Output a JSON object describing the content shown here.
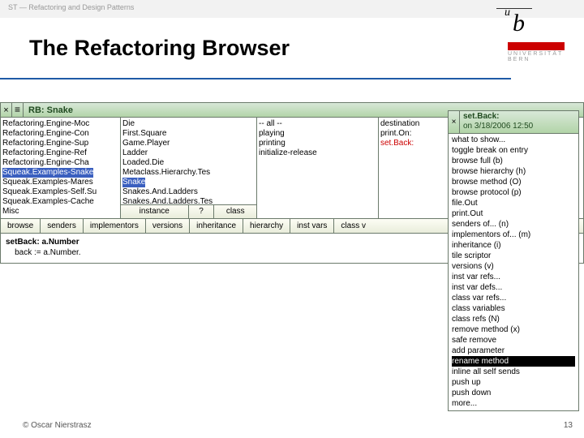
{
  "colors": {
    "accent": "#1f5aa6",
    "green_light": "#d8e8d8",
    "green_dark": "#b2d4a8",
    "border": "#6b7a6b",
    "sel_blue": "#3a5fbf",
    "red": "#cc0000"
  },
  "page": {
    "breadcrumb": "ST — Refactoring and Design Patterns",
    "title": "The Refactoring Browser",
    "footer": "© Oscar Nierstrasz",
    "number": "13",
    "uni_wordmark_line1": "UNIVERSITÄT",
    "uni_wordmark_line2": "BERN"
  },
  "rb": {
    "titlebar": {
      "close": "×",
      "menu": "≡",
      "title": "RB: Snake"
    },
    "panes": {
      "packages": {
        "items": [
          "Refactoring.Engine-Moc",
          "Refactoring.Engine-Con",
          "Refactoring.Engine-Sup",
          "Refactoring.Engine-Ref",
          "Refactoring.Engine-Cha",
          "Squeak.Examples-Snake",
          "Squeak.Examples-Mares",
          "Squeak.Examples-Self.Su",
          "Squeak.Examples-Cache",
          "Misc"
        ],
        "selected_index": 5
      },
      "classes": {
        "items": [
          "Die",
          "First.Square",
          "Game.Player",
          "Ladder",
          "Loaded.Die",
          "Metaclass.Hierarchy.Tes",
          "Snake",
          "Snakes.And.Ladders",
          "Snakes.And.Ladders.Tes"
        ],
        "selected_index": 6,
        "buttons": {
          "instance": "instance",
          "q": "?",
          "klass": "class"
        }
      },
      "protocols": {
        "items": [
          "-- all --",
          "playing",
          "printing",
          "initialize-release"
        ]
      },
      "methods": {
        "items": [
          "destination",
          "print.On:",
          "set.Back:"
        ],
        "red_index": 2
      }
    },
    "buttonrow": [
      "browse",
      "senders",
      "implementors",
      "versions",
      "inheritance",
      "hierarchy",
      "inst vars",
      "class v"
    ],
    "code": {
      "sig_sel": "setBack:",
      "sig_arg": "a.Number",
      "body_var": "back",
      "body_assign": ":= a.Number."
    }
  },
  "popup": {
    "close": "×",
    "title_line1": "set.Back:",
    "title_line2": "on 3/18/2006 12:50",
    "items": [
      "what to show...",
      "toggle break on entry",
      "browse full (b)",
      "browse hierarchy (h)",
      "browse method (O)",
      "browse protocol (p)",
      "file.Out",
      "print.Out",
      "senders of... (n)",
      "implementors of... (m)",
      "inheritance (i)",
      "tile scriptor",
      "versions (v)",
      "inst var refs...",
      "inst var defs...",
      "class var refs...",
      "class variables",
      "class refs (N)",
      "remove method (x)",
      "safe remove",
      "add parameter",
      "rename method",
      "inline all self sends",
      "push up",
      "push down",
      "more..."
    ],
    "selected_index": 21
  }
}
